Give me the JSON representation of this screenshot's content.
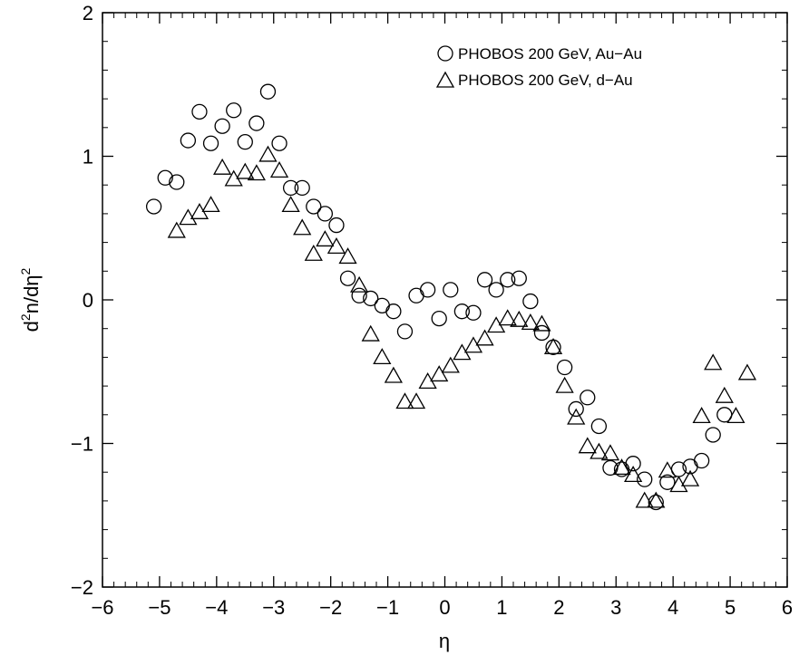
{
  "chart_data": {
    "type": "scatter",
    "xlabel": "η",
    "ylabel": "d2n/dη2",
    "ylabel_parts": {
      "d": "d",
      "sup1": "2",
      "mid": "n/dη",
      "sup2": "2"
    },
    "xlim": [
      -6,
      6
    ],
    "ylim": [
      -2,
      2
    ],
    "x_ticks": [
      -6,
      -5,
      -4,
      -3,
      -2,
      -1,
      0,
      1,
      2,
      3,
      4,
      5,
      6
    ],
    "x_tick_labels": [
      "−6",
      "−5",
      "−4",
      "−3",
      "−2",
      "−1",
      "0",
      "1",
      "2",
      "3",
      "4",
      "5",
      "6"
    ],
    "y_ticks": [
      -2,
      -1,
      0,
      1,
      2
    ],
    "y_tick_labels": [
      "−2",
      "−1",
      "0",
      "1",
      "2"
    ],
    "grid": false,
    "legend_position": "top-right",
    "series": [
      {
        "name": "PHOBOS 200 GeV, Au−Au",
        "marker": "circle",
        "color": "#000000",
        "x": [
          -5.1,
          -4.9,
          -4.7,
          -4.5,
          -4.3,
          -4.1,
          -3.9,
          -3.7,
          -3.5,
          -3.3,
          -3.1,
          -2.9,
          -2.7,
          -2.5,
          -2.3,
          -2.1,
          -1.9,
          -1.7,
          -1.5,
          -1.3,
          -1.1,
          -0.9,
          -0.7,
          -0.5,
          -0.3,
          -0.1,
          0.1,
          0.3,
          0.5,
          0.7,
          0.9,
          1.1,
          1.3,
          1.5,
          1.7,
          1.9,
          2.1,
          2.3,
          2.5,
          2.7,
          2.9,
          3.1,
          3.3,
          3.5,
          3.7,
          3.9,
          4.1,
          4.3,
          4.5,
          4.7,
          4.9
        ],
        "y": [
          0.65,
          0.85,
          0.82,
          1.11,
          1.31,
          1.09,
          1.21,
          1.32,
          1.1,
          1.23,
          1.45,
          1.09,
          0.78,
          0.78,
          0.65,
          0.6,
          0.52,
          0.15,
          0.03,
          0.01,
          -0.04,
          -0.08,
          -0.22,
          0.03,
          0.07,
          -0.13,
          0.07,
          -0.08,
          -0.09,
          0.14,
          0.07,
          0.14,
          0.15,
          -0.01,
          -0.23,
          -0.33,
          -0.47,
          -0.76,
          -0.68,
          -0.88,
          -1.17,
          -1.18,
          -1.14,
          -1.25,
          -1.41,
          -1.27,
          -1.18,
          -1.16,
          -1.12,
          -0.94,
          -0.8
        ]
      },
      {
        "name": "PHOBOS 200 GeV, d−Au",
        "marker": "triangle",
        "color": "#000000",
        "x": [
          -4.7,
          -4.5,
          -4.3,
          -4.1,
          -3.9,
          -3.7,
          -3.5,
          -3.3,
          -3.1,
          -2.9,
          -2.7,
          -2.5,
          -2.3,
          -2.1,
          -1.9,
          -1.7,
          -1.5,
          -1.3,
          -1.1,
          -0.9,
          -0.7,
          -0.5,
          -0.3,
          -0.1,
          0.1,
          0.3,
          0.5,
          0.7,
          0.9,
          1.1,
          1.3,
          1.5,
          1.7,
          1.9,
          2.1,
          2.3,
          2.5,
          2.7,
          2.9,
          3.1,
          3.3,
          3.5,
          3.7,
          3.9,
          4.1,
          4.3,
          4.5,
          4.7,
          4.9,
          5.1,
          5.3
        ],
        "y": [
          0.48,
          0.57,
          0.61,
          0.66,
          0.92,
          0.84,
          0.89,
          0.88,
          1.01,
          0.9,
          0.66,
          0.5,
          0.32,
          0.42,
          0.37,
          0.3,
          0.1,
          -0.24,
          -0.4,
          -0.53,
          -0.71,
          -0.71,
          -0.57,
          -0.52,
          -0.46,
          -0.37,
          -0.32,
          -0.27,
          -0.18,
          -0.13,
          -0.14,
          -0.16,
          -0.17,
          -0.33,
          -0.6,
          -0.82,
          -1.02,
          -1.06,
          -1.07,
          -1.17,
          -1.22,
          -1.4,
          -1.4,
          -1.19,
          -1.29,
          -1.25,
          -0.81,
          -0.44,
          -0.67,
          -0.81,
          -0.51
        ]
      }
    ]
  }
}
